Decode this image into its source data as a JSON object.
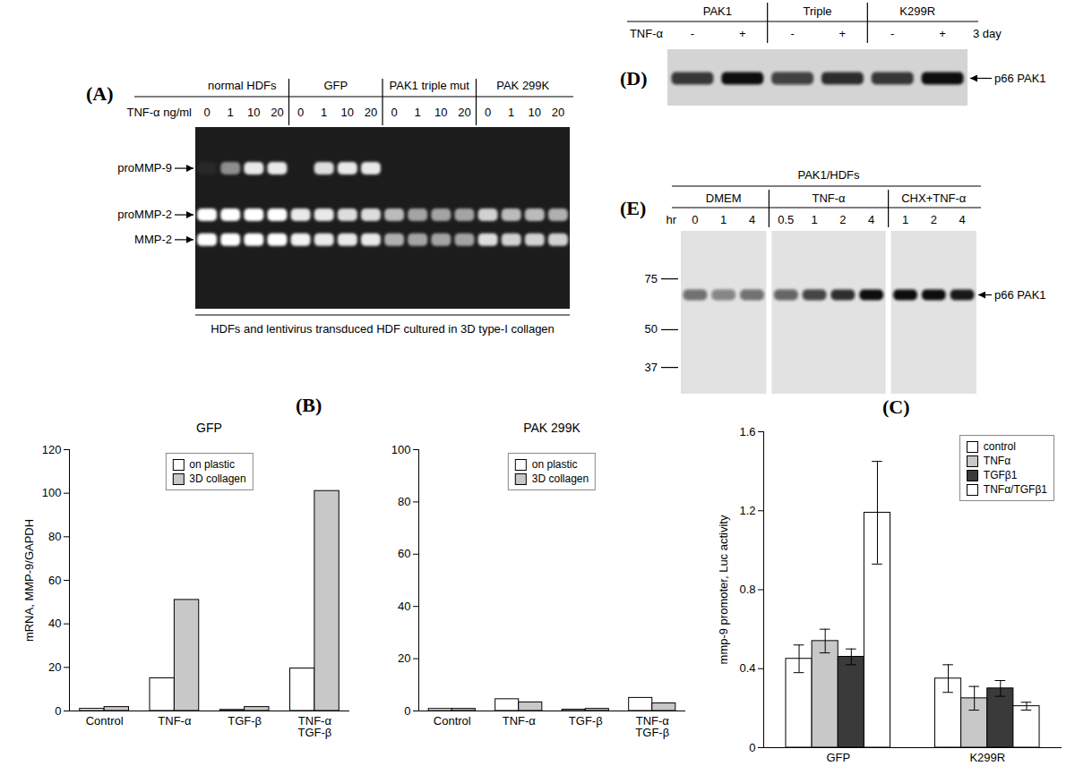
{
  "gels": [
    {
      "panel_label": "(A)",
      "row_label": "TNF-α ng/ml",
      "groups": [
        {
          "name": "normal HDFs",
          "lanes": [
            0,
            1,
            10,
            20
          ]
        },
        {
          "name": "GFP",
          "lanes": [
            0,
            1,
            10,
            20
          ]
        },
        {
          "name": "PAK1 triple mut",
          "lanes": [
            0,
            1,
            10,
            20
          ]
        },
        {
          "name": "PAK 299K",
          "lanes": [
            0,
            1,
            10,
            20
          ]
        }
      ],
      "bands": [
        {
          "name": "proMMP-9",
          "intensity": [
            0.05,
            0.5,
            0.9,
            0.9,
            0,
            0.85,
            0.9,
            0.9,
            0,
            0,
            0,
            0,
            0,
            0,
            0,
            0
          ]
        },
        {
          "name": "proMMP-2",
          "intensity": [
            1,
            1,
            1,
            1,
            0.9,
            0.9,
            0.85,
            0.85,
            0.7,
            0.6,
            0.6,
            0.6,
            0.8,
            0.7,
            0.7,
            0.65
          ]
        },
        {
          "name": "MMP-2",
          "intensity": [
            1,
            1,
            1,
            1,
            0.95,
            0.9,
            0.9,
            0.9,
            0.65,
            0.6,
            0.6,
            0.6,
            0.85,
            0.8,
            0.8,
            0.8
          ]
        }
      ],
      "caption": "HDFs and lentivirus transduced HDF cultured in 3D type-I collagen"
    },
    {
      "panel_label": "(D)",
      "row_label": "TNF-α",
      "row_note": "3 day",
      "groups": [
        {
          "name": "PAK1",
          "lanes": [
            "-",
            "+"
          ]
        },
        {
          "name": "Triple",
          "lanes": [
            "-",
            "+"
          ]
        },
        {
          "name": "K299R",
          "lanes": [
            "-",
            "+"
          ]
        }
      ],
      "bands": [
        {
          "name": "p66 PAK1",
          "intensity": [
            0.8,
            1,
            0.75,
            0.85,
            0.8,
            1
          ]
        }
      ]
    },
    {
      "panel_label": "(E)",
      "header": "PAK1/HDFs",
      "row_label": "hr",
      "groups": [
        {
          "name": "DMEM",
          "lanes": [
            0,
            1,
            4
          ]
        },
        {
          "name": "TNF-α",
          "lanes": [
            0.5,
            1,
            2,
            4
          ]
        },
        {
          "name": "CHX+TNF-α",
          "lanes": [
            1,
            2,
            4
          ]
        }
      ],
      "mw_range": [
        30,
        110
      ],
      "mw_ticks": [
        75,
        50,
        37
      ],
      "bands": [
        {
          "name": "p66 PAK1",
          "mw": 66,
          "intensity": [
            0.55,
            0.45,
            0.55,
            0.6,
            0.75,
            0.85,
            1,
            1,
            1,
            0.95
          ]
        }
      ]
    }
  ],
  "chart_data": [
    {
      "type": "bar",
      "panel_label": "(B)",
      "title": "GFP",
      "y_label": "mRNA, MMP-9/GAPDH",
      "categories": [
        "Control",
        "TNF-α",
        "TGF-β",
        "TNF-α\nTGF-β"
      ],
      "series": [
        {
          "name": "on plastic",
          "color": "#ffffff",
          "values": [
            1,
            15,
            0.5,
            19.5
          ]
        },
        {
          "name": "3D collagen",
          "color": "#c8c8c8",
          "values": [
            1.8,
            51,
            1.8,
            101
          ]
        }
      ],
      "ylim": [
        0,
        120
      ],
      "yticks": [
        0,
        20,
        40,
        60,
        80,
        100,
        120
      ],
      "grid": false,
      "legend": "top"
    },
    {
      "type": "bar",
      "title": "PAK 299K",
      "categories": [
        "Control",
        "TNF-α",
        "TGF-β",
        "TNF-α\nTGF-β"
      ],
      "series": [
        {
          "name": "on plastic",
          "color": "#ffffff",
          "values": [
            0.8,
            4.5,
            0.5,
            5
          ]
        },
        {
          "name": "3D collagen",
          "color": "#c8c8c8",
          "values": [
            0.8,
            3.3,
            0.8,
            2.9
          ]
        }
      ],
      "ylim": [
        0,
        100
      ],
      "yticks": [
        0,
        20,
        40,
        60,
        80,
        100
      ],
      "grid": false,
      "legend": "top"
    },
    {
      "type": "bar",
      "panel_label": "(C)",
      "y_label": "mmp-9 promoter, Luc activity",
      "categories": [
        "GFP",
        "K299R"
      ],
      "series": [
        {
          "name": "control",
          "color": "#ffffff",
          "values": [
            0.45,
            0.35
          ],
          "errors": [
            0.07,
            0.07
          ]
        },
        {
          "name": "TNFα",
          "color": "#c8c8c8",
          "values": [
            0.54,
            0.25
          ],
          "errors": [
            0.06,
            0.06
          ]
        },
        {
          "name": "TGFβ1",
          "color": "#3a3a3a",
          "values": [
            0.46,
            0.3
          ],
          "errors": [
            0.04,
            0.04
          ]
        },
        {
          "name": "TNFα/TGFβ1",
          "color": "#ffffff",
          "values": [
            1.19,
            0.21
          ],
          "errors": [
            0.26,
            0.02
          ]
        }
      ],
      "ylim": [
        0,
        1.6
      ],
      "yticks": [
        0,
        0.4,
        0.8,
        1.2,
        1.6
      ],
      "grid": false,
      "legend": "top-right"
    }
  ]
}
